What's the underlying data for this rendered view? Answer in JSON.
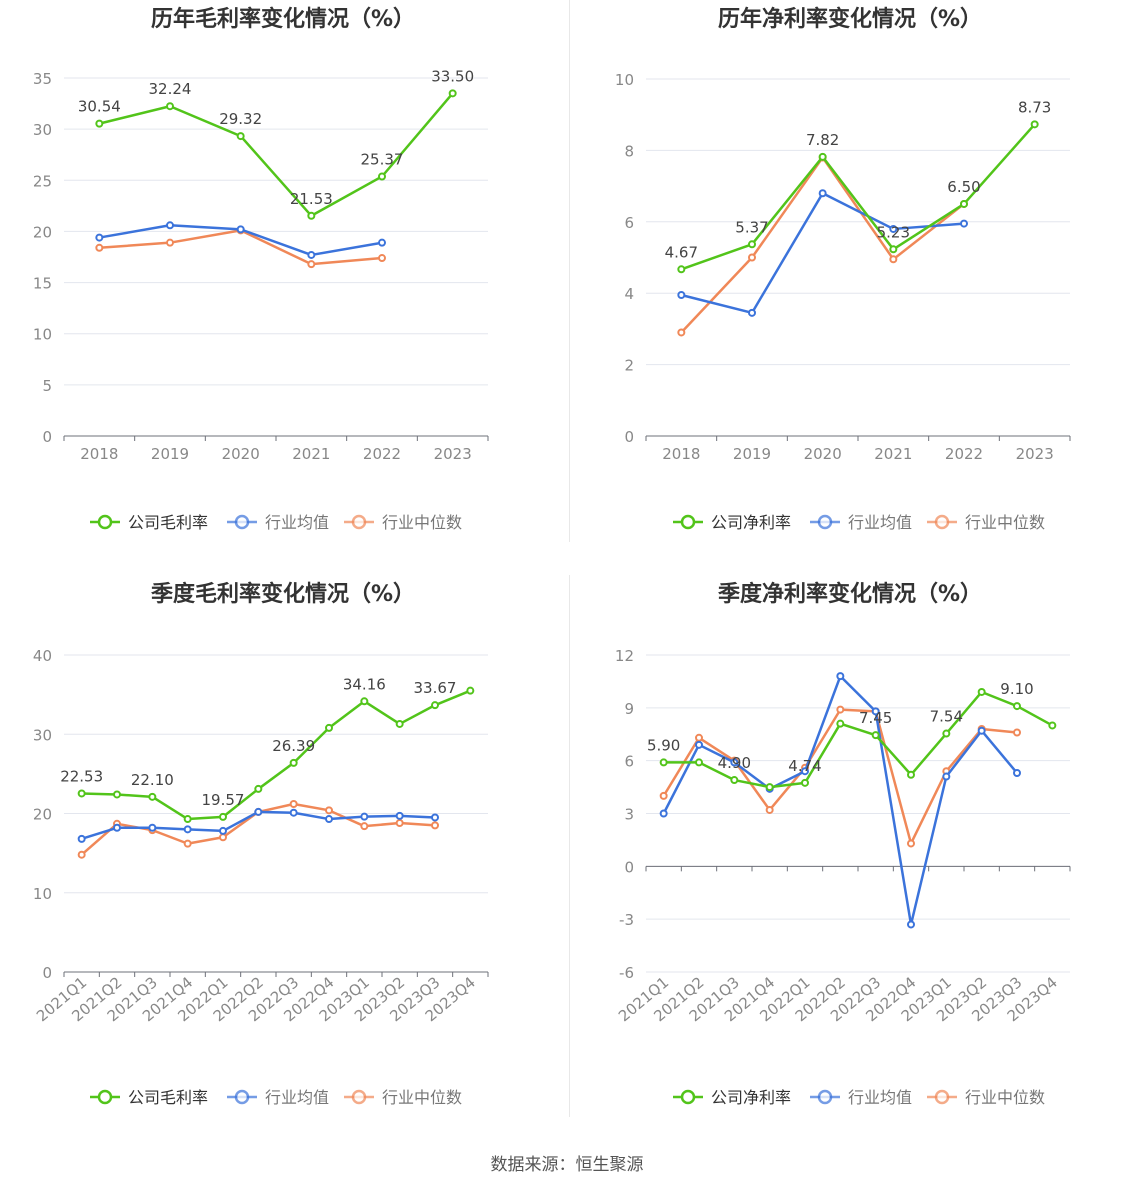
{
  "chart_data": [
    {
      "type": "line",
      "title": "历年毛利率变化情况（%）",
      "categories": [
        "2018",
        "2019",
        "2020",
        "2021",
        "2022",
        "2023"
      ],
      "ylim": [
        0,
        35
      ],
      "yticks": [
        0,
        5,
        10,
        15,
        20,
        25,
        30,
        35
      ],
      "grid": true,
      "legend_position": "bottom",
      "series": [
        {
          "name": "公司毛利率",
          "color": "#52c41a",
          "values": [
            30.54,
            32.24,
            29.32,
            21.53,
            25.37,
            33.5
          ],
          "labels": [
            "30.54",
            "32.24",
            "29.32",
            "21.53",
            "25.37",
            "33.50"
          ]
        },
        {
          "name": "行业均值",
          "color": "#3b73db",
          "values": [
            19.4,
            20.6,
            20.2,
            17.7,
            18.9,
            null
          ]
        },
        {
          "name": "行业中位数",
          "color": "#f08858",
          "values": [
            18.4,
            18.9,
            20.1,
            16.8,
            17.4,
            null
          ]
        }
      ]
    },
    {
      "type": "line",
      "title": "历年净利率变化情况（%）",
      "categories": [
        "2018",
        "2019",
        "2020",
        "2021",
        "2022",
        "2023"
      ],
      "ylim": [
        0,
        10
      ],
      "yticks": [
        0,
        2,
        4,
        6,
        8,
        10
      ],
      "grid": true,
      "legend_position": "bottom",
      "series": [
        {
          "name": "公司净利率",
          "color": "#52c41a",
          "values": [
            4.67,
            5.37,
            7.82,
            5.23,
            6.5,
            8.73
          ],
          "labels": [
            "4.67",
            "5.37",
            "7.82",
            "5.23",
            "6.50",
            "8.73"
          ]
        },
        {
          "name": "行业均值",
          "color": "#3b73db",
          "values": [
            3.95,
            3.45,
            6.8,
            5.8,
            5.95,
            null
          ]
        },
        {
          "name": "行业中位数",
          "color": "#f08858",
          "values": [
            2.9,
            5.0,
            7.8,
            4.95,
            6.5,
            null
          ]
        }
      ]
    },
    {
      "type": "line",
      "title": "季度毛利率变化情况（%）",
      "categories": [
        "2021Q1",
        "2021Q2",
        "2021Q3",
        "2021Q4",
        "2022Q1",
        "2022Q2",
        "2022Q3",
        "2022Q4",
        "2023Q1",
        "2023Q2",
        "2023Q3",
        "2023Q4"
      ],
      "ylim": [
        0,
        40
      ],
      "yticks": [
        0,
        10,
        20,
        30,
        40
      ],
      "grid": true,
      "legend_position": "bottom",
      "series": [
        {
          "name": "公司毛利率",
          "color": "#52c41a",
          "values": [
            22.53,
            22.4,
            22.1,
            19.3,
            19.57,
            23.1,
            26.39,
            30.8,
            34.16,
            31.3,
            33.67,
            35.5
          ],
          "labels": [
            "22.53",
            null,
            "22.10",
            null,
            "19.57",
            null,
            "26.39",
            null,
            "34.16",
            null,
            "33.67",
            null
          ]
        },
        {
          "name": "行业均值",
          "color": "#3b73db",
          "values": [
            16.8,
            18.2,
            18.2,
            18.0,
            17.8,
            20.2,
            20.1,
            19.3,
            19.6,
            19.7,
            19.5,
            null
          ]
        },
        {
          "name": "行业中位数",
          "color": "#f08858",
          "values": [
            14.8,
            18.7,
            17.9,
            16.2,
            17.0,
            20.2,
            21.2,
            20.4,
            18.4,
            18.8,
            18.5,
            null
          ]
        }
      ]
    },
    {
      "type": "line",
      "title": "季度净利率变化情况（%）",
      "categories": [
        "2021Q1",
        "2021Q2",
        "2021Q3",
        "2021Q4",
        "2022Q1",
        "2022Q2",
        "2022Q3",
        "2022Q4",
        "2023Q1",
        "2023Q2",
        "2023Q3",
        "2023Q4"
      ],
      "ylim": [
        -6,
        12
      ],
      "yticks": [
        -6,
        -3,
        0,
        3,
        6,
        9,
        12
      ],
      "grid": true,
      "legend_position": "bottom",
      "series": [
        {
          "name": "公司净利率",
          "color": "#52c41a",
          "values": [
            5.9,
            5.9,
            4.9,
            4.5,
            4.74,
            8.1,
            7.45,
            5.2,
            7.54,
            9.9,
            9.1,
            8.0
          ],
          "labels": [
            "5.90",
            null,
            "4.90",
            null,
            "4.74",
            null,
            "7.45",
            null,
            "7.54",
            null,
            "9.10",
            null
          ]
        },
        {
          "name": "行业均值",
          "color": "#3b73db",
          "values": [
            3.0,
            6.9,
            5.9,
            4.4,
            5.4,
            10.8,
            8.8,
            -3.3,
            5.1,
            7.7,
            5.3,
            null
          ]
        },
        {
          "name": "行业中位数",
          "color": "#f08858",
          "values": [
            4.0,
            7.3,
            6.0,
            3.2,
            5.6,
            8.9,
            8.8,
            1.3,
            5.4,
            7.8,
            7.6,
            null
          ]
        }
      ]
    }
  ],
  "footer": {
    "source": "数据来源：恒生聚源"
  }
}
